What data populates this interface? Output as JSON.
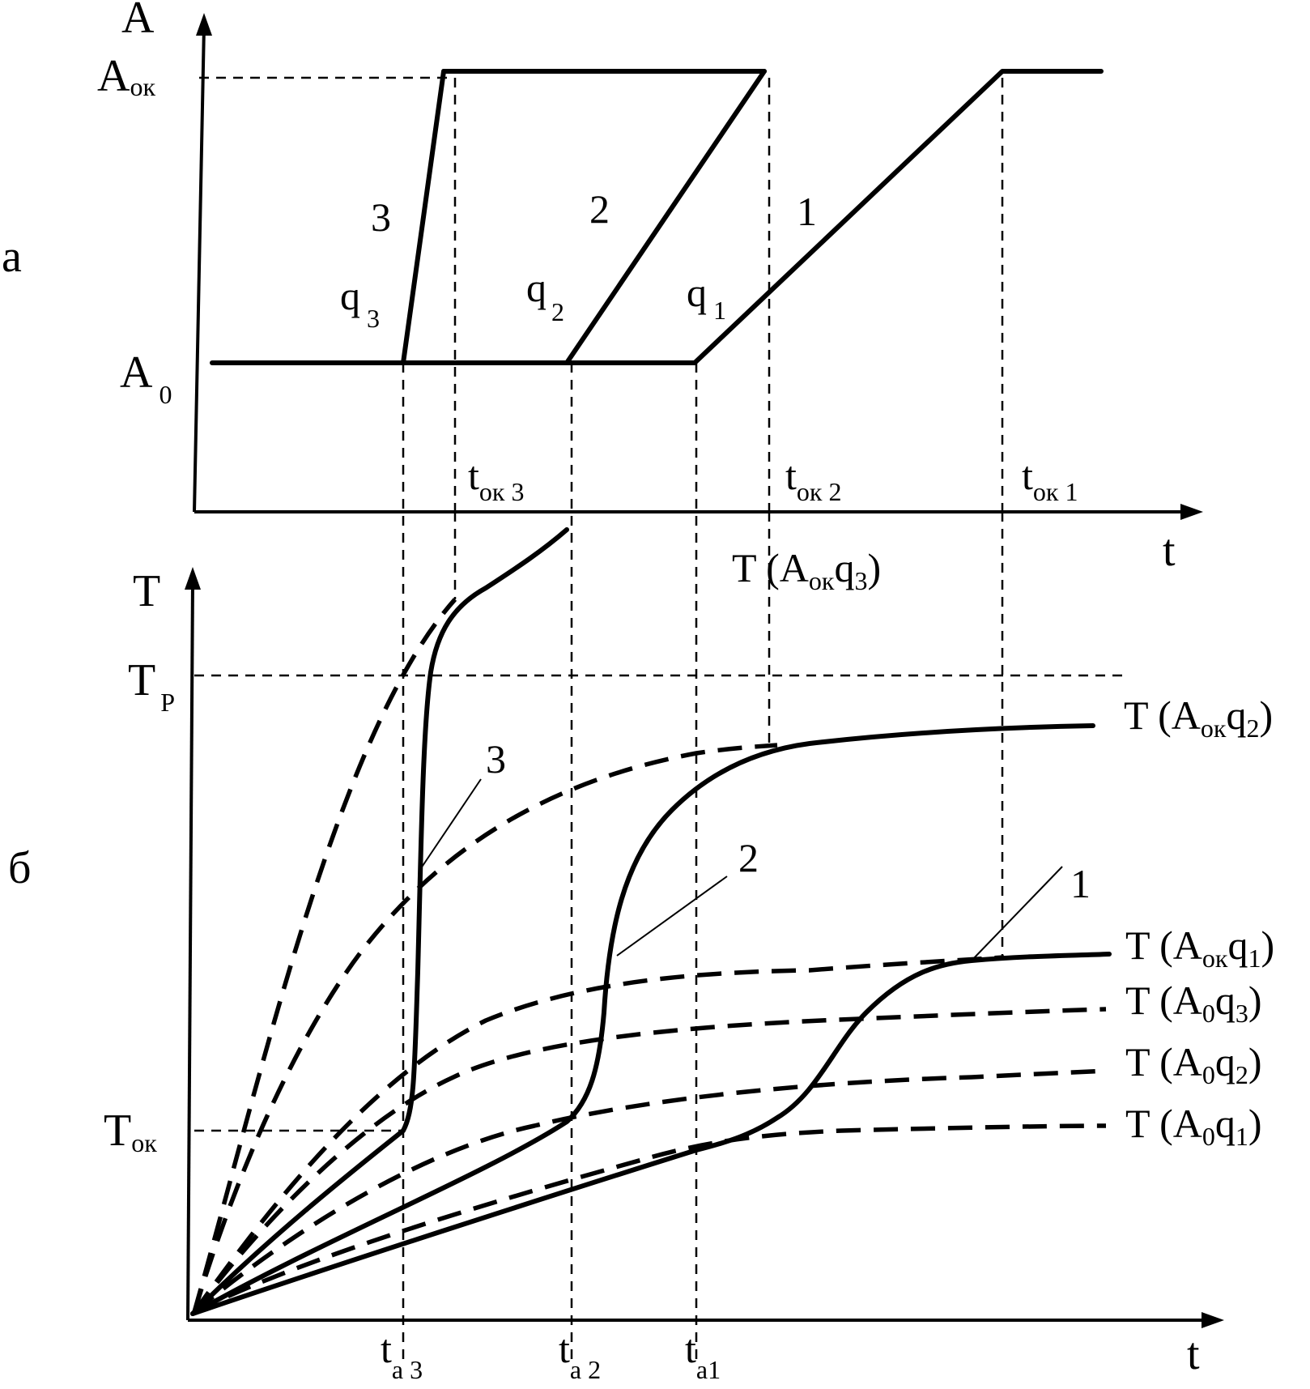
{
  "panel_a": {
    "panel_label": "а",
    "y_axis": "A",
    "x_axis": "t",
    "y_level_top": {
      "main": "A",
      "sub": "ок"
    },
    "y_level_bottom": {
      "main": "A",
      "sub": "0"
    },
    "curves": [
      {
        "number": "3",
        "rate_main": "q",
        "rate_sub": "3"
      },
      {
        "number": "2",
        "rate_main": "q",
        "rate_sub": "2"
      },
      {
        "number": "1",
        "rate_main": "q",
        "rate_sub": "1"
      }
    ],
    "times": [
      {
        "main": "t",
        "sub": "ок 3"
      },
      {
        "main": "t",
        "sub": "ок 2"
      },
      {
        "main": "t",
        "sub": "ок 1"
      }
    ]
  },
  "panel_b": {
    "panel_label": "б",
    "y_axis": "T",
    "x_axis": "t",
    "y_level_top": {
      "main": "T",
      "sub": "P"
    },
    "y_level_bottom": {
      "main": "T",
      "sub": "ок"
    },
    "curve_numbers": [
      "3",
      "2",
      "1"
    ],
    "times": [
      {
        "main": "t",
        "sub": "a 3"
      },
      {
        "main": "t",
        "sub": "a 2"
      },
      {
        "main": "t",
        "sub": "a1"
      }
    ],
    "asymptote_labels": [
      {
        "pre": "T (A",
        "s1": "ок",
        "mid": "q",
        "s2": "3",
        "post": ")"
      },
      {
        "pre": "T (A",
        "s1": "ок",
        "mid": "q",
        "s2": "2",
        "post": ")"
      },
      {
        "pre": "T (A",
        "s1": "ок",
        "mid": "q",
        "s2": "1",
        "post": ")"
      },
      {
        "pre": "T (A",
        "s1": "0",
        "mid": "q",
        "s2": "3",
        "post": ")"
      },
      {
        "pre": "T (A",
        "s1": "0",
        "mid": "q",
        "s2": "2",
        "post": ")"
      },
      {
        "pre": "T (A",
        "s1": "0",
        "mid": "q",
        "s2": "1",
        "post": ")"
      }
    ]
  }
}
